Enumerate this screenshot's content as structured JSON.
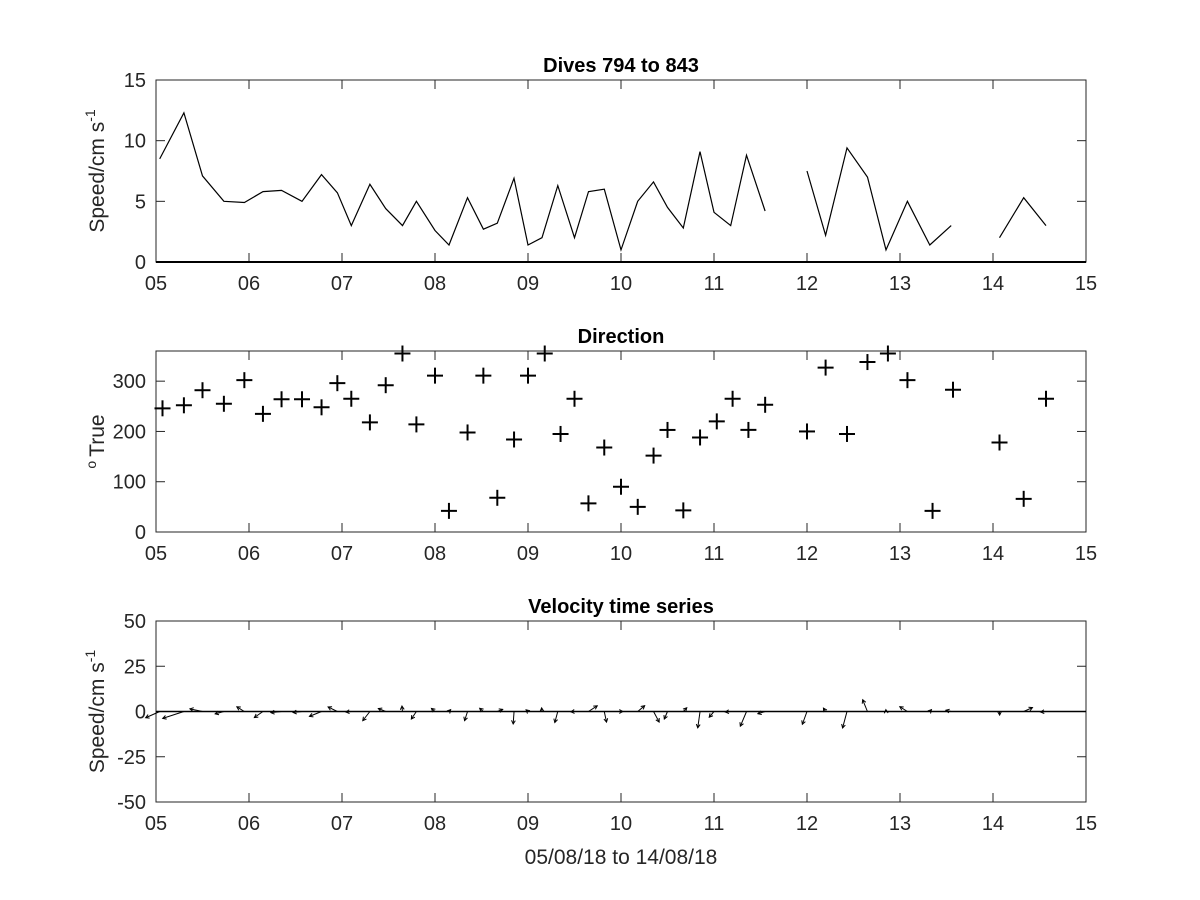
{
  "chart_data": [
    {
      "type": "line",
      "title": "Dives 794 to 843",
      "ylabel_main": "Speed/cm s",
      "ylabel_sup": "-1",
      "xlim": [
        5,
        15
      ],
      "ylim": [
        0,
        15
      ],
      "xticks": [
        "05",
        "06",
        "07",
        "08",
        "09",
        "10",
        "11",
        "12",
        "13",
        "14",
        "15"
      ],
      "yticks": [
        "0",
        "5",
        "10",
        "15"
      ],
      "series": [
        {
          "segments": [
            {
              "x": [
                5.04,
                5.3,
                5.5,
                5.73,
                5.95,
                6.15,
                6.35,
                6.57,
                6.78,
                6.95,
                7.1,
                7.3,
                7.47,
                7.65,
                7.8,
                8.0,
                8.15,
                8.35,
                8.52,
                8.67,
                8.85,
                9.0,
                9.15,
                9.32,
                9.5,
                9.65,
                9.82,
                10.0,
                10.18,
                10.35,
                10.5,
                10.67,
                10.85,
                11.0,
                11.18,
                11.35,
                11.55
              ],
              "y": [
                8.5,
                12.3,
                7.1,
                5.0,
                4.9,
                5.8,
                5.9,
                5.0,
                7.2,
                5.7,
                3.0,
                6.4,
                4.4,
                3.0,
                5.0,
                2.6,
                1.4,
                5.3,
                2.7,
                3.2,
                6.9,
                1.4,
                2.0,
                6.3,
                2.0,
                5.8,
                6.0,
                1.0,
                5.0,
                6.6,
                4.5,
                2.8,
                9.1,
                4.1,
                3.0,
                8.8,
                4.2
              ]
            },
            {
              "x": [
                12.0,
                12.2,
                12.43,
                12.65,
                12.85,
                13.08,
                13.32,
                13.55
              ],
              "y": [
                7.5,
                2.2,
                9.4,
                7.0,
                1.0,
                5.0,
                1.4,
                3.0
              ]
            },
            {
              "x": [
                14.07,
                14.33,
                14.57
              ],
              "y": [
                2.0,
                5.3,
                3.0
              ]
            }
          ]
        }
      ]
    },
    {
      "type": "scatter",
      "title": "Direction",
      "ylabel_main": "True",
      "ylabel_sup": "o",
      "xlim": [
        5,
        15
      ],
      "ylim": [
        0,
        360
      ],
      "xticks": [
        "05",
        "06",
        "07",
        "08",
        "09",
        "10",
        "11",
        "12",
        "13",
        "14",
        "15"
      ],
      "yticks": [
        "0",
        "100",
        "200",
        "300"
      ],
      "series": [
        {
          "x": [
            5.07,
            5.3,
            5.5,
            5.73,
            5.95,
            6.15,
            6.35,
            6.57,
            6.78,
            6.95,
            7.1,
            7.3,
            7.47,
            7.65,
            7.8,
            8.0,
            8.15,
            8.35,
            8.52,
            8.67,
            8.85,
            9.0,
            9.18,
            9.35,
            9.5,
            9.65,
            9.82,
            10.0,
            10.18,
            10.35,
            10.5,
            10.67,
            10.85,
            11.03,
            11.2,
            11.37,
            11.55,
            12.0,
            12.2,
            12.43,
            12.65,
            12.87,
            13.08,
            13.35,
            13.57,
            14.07,
            14.33,
            14.57
          ],
          "y": [
            246,
            252,
            282,
            255,
            302,
            235,
            264,
            264,
            248,
            296,
            265,
            218,
            292,
            355,
            214,
            311,
            42,
            198,
            311,
            68,
            184,
            311,
            355,
            195,
            265,
            57,
            168,
            90,
            50,
            152,
            203,
            43,
            188,
            220,
            265,
            203,
            253,
            200,
            327,
            195,
            338,
            355,
            302,
            42,
            283,
            178,
            66,
            265
          ]
        }
      ]
    },
    {
      "type": "quiver",
      "title": "Velocity time series",
      "ylabel_main": "Speed/cm s",
      "ylabel_sup": "-1",
      "xlabel": "05/08/18 to 14/08/18",
      "xlim": [
        5,
        15
      ],
      "ylim": [
        -50,
        50
      ],
      "xticks": [
        "05",
        "06",
        "07",
        "08",
        "09",
        "10",
        "11",
        "12",
        "13",
        "14",
        "15"
      ],
      "yticks": [
        "-50",
        "-25",
        "0",
        "25",
        "50"
      ],
      "series": [
        {
          "x": [
            5.04,
            5.3,
            5.5,
            5.73,
            5.95,
            6.15,
            6.35,
            6.57,
            6.78,
            6.95,
            7.1,
            7.3,
            7.47,
            7.65,
            7.8,
            8.0,
            8.15,
            8.35,
            8.52,
            8.67,
            8.85,
            9.0,
            9.15,
            9.32,
            9.5,
            9.65,
            9.82,
            10.0,
            10.18,
            10.35,
            10.5,
            10.67,
            10.85,
            11.0,
            11.18,
            11.35,
            11.55,
            12.0,
            12.2,
            12.43,
            12.65,
            12.85,
            13.08,
            13.32,
            13.55,
            14.07,
            14.33,
            14.57
          ],
          "speed": [
            8.5,
            12.3,
            7.1,
            5.0,
            4.9,
            5.8,
            5.9,
            5.0,
            7.2,
            5.7,
            3.0,
            6.4,
            4.4,
            3.0,
            5.0,
            2.6,
            1.4,
            5.3,
            2.7,
            3.2,
            6.9,
            1.4,
            2.0,
            6.3,
            2.0,
            5.8,
            6.0,
            1.0,
            5.0,
            6.6,
            4.5,
            2.8,
            9.1,
            4.1,
            3.0,
            8.8,
            4.2,
            7.5,
            2.2,
            9.4,
            7.0,
            1.0,
            5.0,
            1.4,
            3.0,
            2.0,
            5.3,
            3.0
          ],
          "direction": [
            246,
            252,
            282,
            255,
            302,
            235,
            264,
            264,
            248,
            296,
            265,
            218,
            292,
            355,
            214,
            311,
            42,
            198,
            311,
            68,
            184,
            311,
            355,
            195,
            265,
            57,
            168,
            90,
            50,
            152,
            203,
            43,
            188,
            220,
            265,
            203,
            253,
            200,
            327,
            195,
            338,
            355,
            302,
            42,
            283,
            178,
            66,
            265
          ]
        }
      ]
    }
  ]
}
